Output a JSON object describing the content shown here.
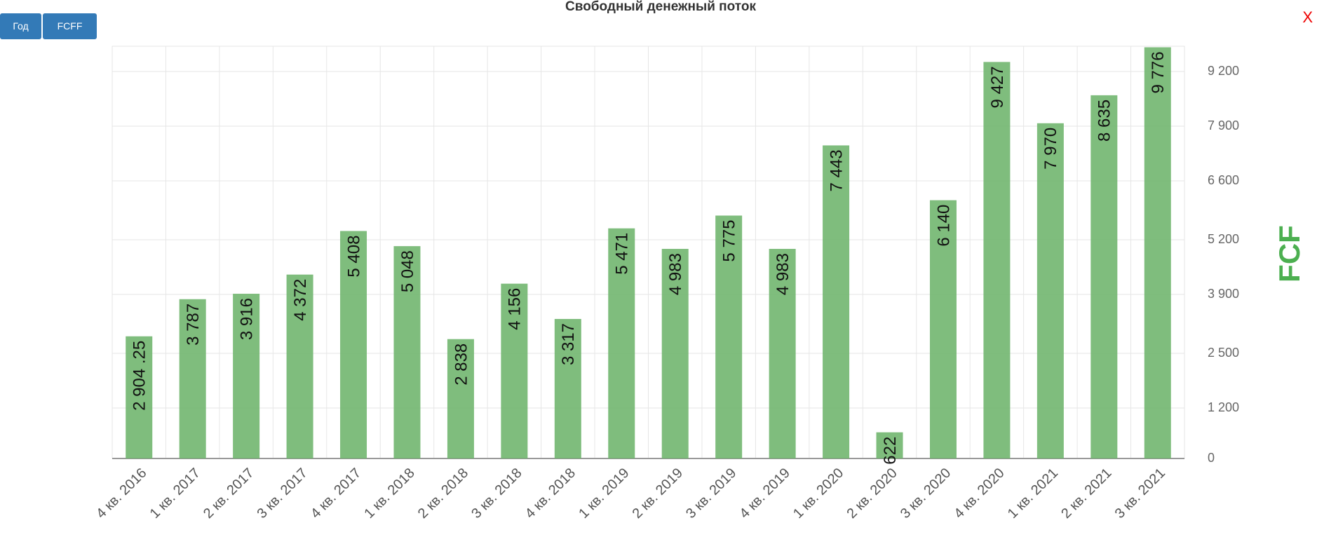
{
  "buttons": [
    "Год",
    "FCFF"
  ],
  "close": "X",
  "chart_data": {
    "type": "bar",
    "title": "Свободный денежный поток",
    "y_label": "FCF",
    "categories": [
      "4 кв. 2016",
      "1 кв. 2017",
      "2 кв. 2017",
      "3 кв. 2017",
      "4 кв. 2017",
      "1 кв. 2018",
      "2 кв. 2018",
      "3 кв. 2018",
      "4 кв. 2018",
      "1 кв. 2019",
      "2 кв. 2019",
      "3 кв. 2019",
      "4 кв. 2019",
      "1 кв. 2020",
      "2 кв. 2020",
      "3 кв. 2020",
      "4 кв. 2020",
      "1 кв. 2021",
      "2 кв. 2021",
      "3 кв. 2021"
    ],
    "values": [
      2904.25,
      3787,
      3916,
      4372,
      5408,
      5048,
      2838,
      4156,
      3317,
      5471,
      4983,
      5775,
      4983,
      7443,
      622,
      6140,
      9427,
      7970,
      8635,
      9776
    ],
    "value_labels": [
      "2 904 .25",
      "3 787",
      "3 916",
      "4 372",
      "5 408",
      "5 048",
      "2 838",
      "4 156",
      "3 317",
      "5 471",
      "4 983",
      "5 775",
      "4 983",
      "7 443",
      "622",
      "6 140",
      "9 427",
      "7 970",
      "8 635",
      "9 776"
    ],
    "color": "#6db46b",
    "ylim": [
      0,
      9800
    ],
    "yticks": [
      0,
      {
        "value": 1200,
        "label": "1 200"
      },
      {
        "value": 2500,
        "label": "2 500"
      },
      {
        "value": 3900,
        "label": "3 900"
      },
      {
        "value": 5200,
        "label": "5 200"
      },
      {
        "value": 6600,
        "label": "6 600"
      },
      {
        "value": 7900,
        "label": "7 900"
      },
      {
        "value": 9200,
        "label": "9 200"
      }
    ],
    "grid": true
  }
}
